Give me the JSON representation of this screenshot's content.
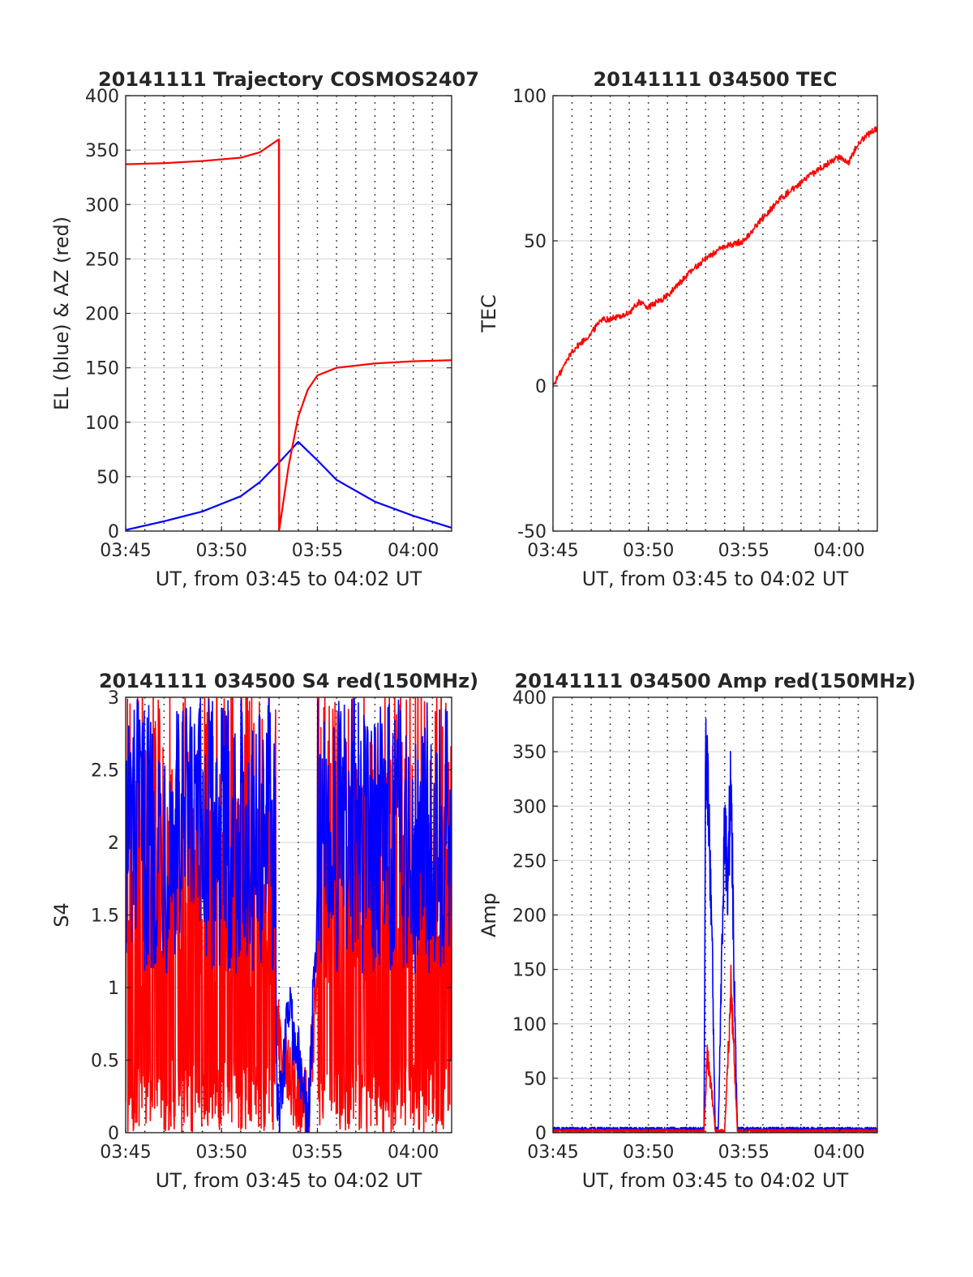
{
  "colors": {
    "el": "#0000ff",
    "az": "#ff0000",
    "tec": "#ff0000",
    "s4_red": "#ff0000",
    "s4_blue": "#0000ff",
    "amp_red": "#ff0000",
    "amp_blue": "#0000ff"
  },
  "chart_data": [
    {
      "type": "line",
      "title": "20141111 Trajectory COSMOS2407",
      "xlabel": "UT, from 03:45 to 04:02 UT",
      "ylabel": "EL (blue) & AZ (red)",
      "xlim": [
        "03:45",
        "04:02"
      ],
      "ylim": [
        0,
        400
      ],
      "xticks": [
        "03:45",
        "03:50",
        "03:55",
        "04:00"
      ],
      "yticks": [
        "0",
        "50",
        "100",
        "150",
        "200",
        "250",
        "300",
        "350",
        "400"
      ],
      "grid": true,
      "series": [
        {
          "color": "blue",
          "x": [
            "03:45",
            "03:47",
            "03:49",
            "03:51",
            "03:52",
            "03:53",
            "03:54",
            "03:55",
            "03:56",
            "03:58",
            "04:00",
            "04:02"
          ],
          "values": [
            1,
            9,
            18,
            32,
            45,
            63,
            82,
            65,
            47,
            27,
            14,
            3
          ]
        },
        {
          "color": "red",
          "x": [
            "03:45",
            "03:47",
            "03:49",
            "03:51",
            "03:52",
            "03:53",
            "03:53",
            "03:53:30",
            "03:54",
            "03:54:30",
            "03:55",
            "03:56",
            "03:58",
            "04:00",
            "04:02"
          ],
          "values": [
            337,
            338,
            340,
            343,
            348,
            360,
            0,
            60,
            105,
            130,
            143,
            150,
            154,
            156,
            157
          ]
        }
      ]
    },
    {
      "type": "line",
      "title": "20141111 034500 TEC",
      "xlabel": "UT, from 03:45 to 04:02 UT",
      "ylabel": "TEC",
      "xlim": [
        "03:45",
        "04:02"
      ],
      "ylim": [
        -50,
        100
      ],
      "xticks": [
        "03:45",
        "03:50",
        "03:55",
        "04:00"
      ],
      "yticks": [
        "-50",
        "0",
        "50",
        "100"
      ],
      "grid": true,
      "series": [
        {
          "color": "red",
          "x": [
            "03:45",
            "03:46",
            "03:47",
            "03:47:30",
            "03:48",
            "03:49",
            "03:49:30",
            "03:50",
            "03:51",
            "03:52",
            "03:53",
            "03:54",
            "03:55",
            "03:56",
            "03:57",
            "03:58",
            "03:59",
            "04:00",
            "04:00:30",
            "04:01",
            "04:02"
          ],
          "values": [
            0,
            12,
            18,
            23,
            23,
            25,
            29,
            27,
            31,
            38,
            44,
            48,
            50,
            58,
            65,
            70,
            75,
            79,
            77,
            84,
            89
          ]
        }
      ]
    },
    {
      "type": "line",
      "title": "20141111 034500 S4 red(150MHz)",
      "xlabel": "UT, from 03:45 to 04:02 UT",
      "ylabel": "S4",
      "xlim": [
        "03:45",
        "04:02"
      ],
      "ylim": [
        0,
        3
      ],
      "xticks": [
        "03:45",
        "03:50",
        "03:55",
        "04:00"
      ],
      "yticks": [
        "0",
        "0.5",
        "1",
        "1.5",
        "2",
        "2.5",
        "3"
      ],
      "grid": true,
      "series": [
        {
          "color": "red",
          "x": [
            "03:45",
            "03:52",
            "03:53",
            "03:53:30",
            "03:54",
            "03:54:30",
            "03:55",
            "04:02"
          ],
          "values": [
            1.5,
            1.6,
            0.6,
            0.4,
            0.3,
            0.1,
            1.2,
            1.6
          ]
        },
        {
          "color": "blue",
          "x": [
            "03:45",
            "03:52",
            "03:53",
            "03:53:30",
            "03:54",
            "03:54:30",
            "03:55",
            "04:02"
          ],
          "values": [
            1.8,
            1.9,
            0.1,
            0.9,
            0.5,
            0.08,
            1.5,
            1.9
          ]
        }
      ]
    },
    {
      "type": "line",
      "title": "20141111 034500 Amp red(150MHz)",
      "xlabel": "UT, from 03:45 to 04:02 UT",
      "ylabel": "Amp",
      "xlim": [
        "03:45",
        "04:02"
      ],
      "ylim": [
        0,
        400
      ],
      "xticks": [
        "03:45",
        "03:50",
        "03:55",
        "04:00"
      ],
      "yticks": [
        "0",
        "50",
        "100",
        "150",
        "200",
        "250",
        "300",
        "350",
        "400"
      ],
      "grid": true,
      "series": [
        {
          "color": "blue",
          "x": [
            "03:45",
            "03:52:55",
            "03:53:00",
            "03:53:10",
            "03:53:20",
            "03:53:30",
            "03:53:40",
            "03:54:00",
            "03:54:10",
            "03:54:20",
            "03:54:30",
            "03:54:40",
            "04:02"
          ],
          "values": [
            2,
            2,
            370,
            330,
            200,
            3,
            2,
            330,
            250,
            370,
            150,
            2,
            2
          ]
        },
        {
          "color": "red",
          "x": [
            "03:45",
            "03:52:55",
            "03:53:05",
            "03:53:20",
            "03:53:30",
            "03:54:00",
            "03:54:20",
            "03:54:40",
            "04:02"
          ],
          "values": [
            0,
            0,
            80,
            40,
            0,
            0,
            150,
            0,
            0
          ]
        }
      ]
    }
  ]
}
